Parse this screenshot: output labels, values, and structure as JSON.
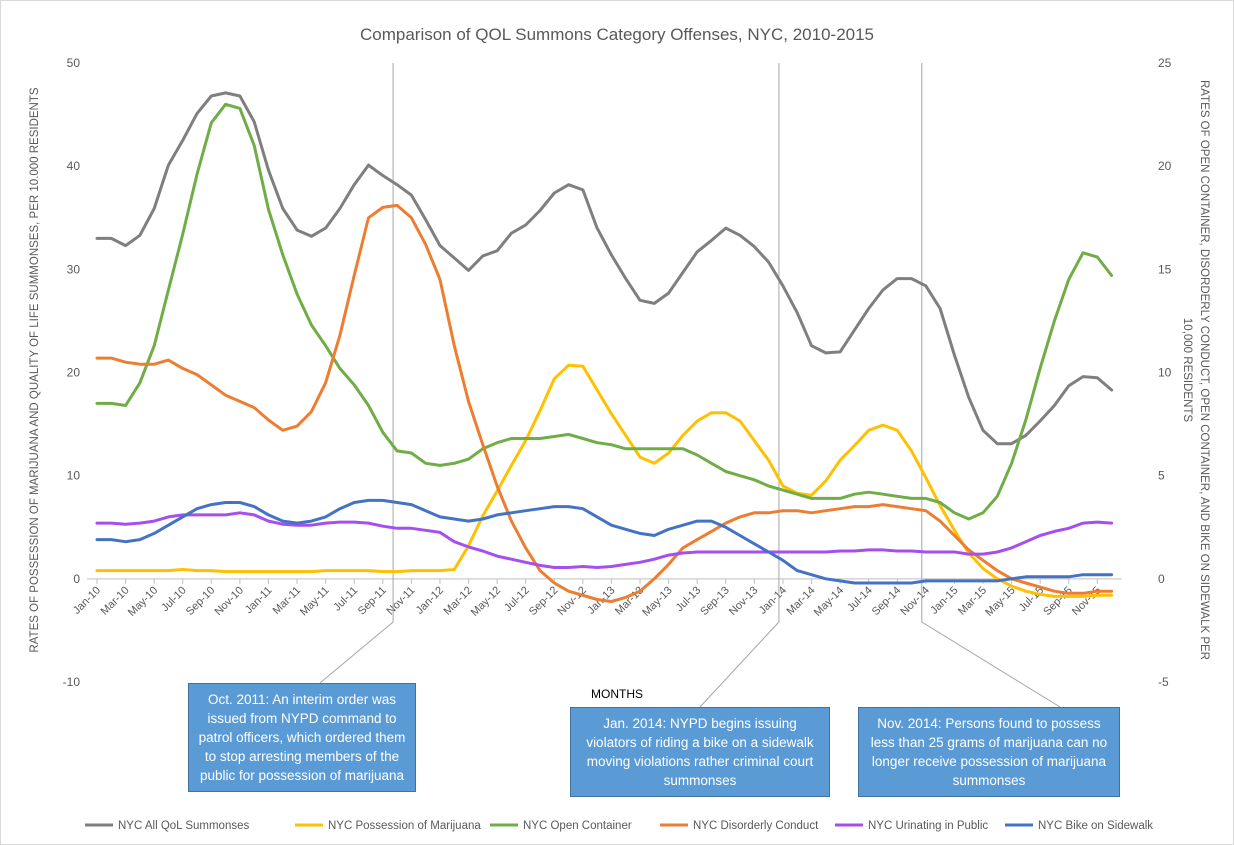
{
  "chart_data": {
    "type": "line",
    "title": "Comparison of QOL Summons Category Offenses, NYC, 2010-2015",
    "x_label": "MONTHS",
    "y_label": "RATES OF POSSESSION OF MARIJUANA AND QUALITY OF LIFE SUMMONSES,  PER 10.000 RESIDENTS",
    "y2_label": [
      "RATES OF OPEN CONTAINER, DISORDERLY CONDUCT, OPEN CONTAINER, AND BIKE ON SIDEWALK PER",
      "10,000 RESIDENTS"
    ],
    "ylim": [
      -10,
      50
    ],
    "yticks": [
      -10,
      0,
      10,
      20,
      30,
      40,
      50
    ],
    "y2lim": [
      -5,
      25
    ],
    "y2ticks": [
      -5,
      0,
      5,
      10,
      15,
      20,
      25
    ],
    "grid": false,
    "legend": "bottom",
    "categories": [
      "Jan-10",
      null,
      "Mar-10",
      null,
      "May-10",
      null,
      "Jul-10",
      null,
      "Sep-10",
      null,
      "Nov-10",
      null,
      "Jan-11",
      null,
      "Mar-11",
      null,
      "May-11",
      null,
      "Jul-11",
      null,
      "Sep-11",
      null,
      "Nov-11",
      null,
      "Jan-12",
      null,
      "Mar-12",
      null,
      "May-12",
      null,
      "Jul-12",
      null,
      "Sep-12",
      null,
      "Nov-12",
      null,
      "Jan-13",
      null,
      "Mar-13",
      null,
      "May-13",
      null,
      "Jul-13",
      null,
      "Sep-13",
      null,
      "Nov-13",
      null,
      "Jan-14",
      null,
      "Mar-14",
      null,
      "May-14",
      null,
      "Jul-14",
      null,
      "Sep-14",
      null,
      "Nov-14",
      null,
      "Jan-15",
      null,
      "Mar-15",
      null,
      "May-15",
      null,
      "Jul-15",
      null,
      "Sep-15",
      null,
      "Nov-15",
      null
    ],
    "series": [
      {
        "name": "NYC All QoL Summonses",
        "color": "#7f7f7f",
        "values": [
          33.0,
          33.0,
          32.3,
          33.3,
          35.9,
          40.1,
          42.5,
          45.1,
          46.8,
          47.1,
          46.8,
          44.3,
          39.6,
          35.9,
          33.8,
          33.2,
          34.0,
          35.9,
          38.2,
          40.1,
          39.1,
          38.2,
          37.2,
          34.8,
          32.3,
          31.1,
          29.9,
          31.3,
          31.8,
          33.5,
          34.3,
          35.7,
          37.4,
          38.2,
          37.7,
          34.0,
          31.4,
          29.1,
          27.0,
          26.7,
          27.7,
          29.7,
          31.7,
          32.8,
          34.0,
          33.3,
          32.2,
          30.7,
          28.4,
          25.8,
          22.6,
          21.9,
          22.0,
          24.1,
          26.2,
          28.0,
          29.1,
          29.1,
          28.4,
          26.2,
          21.7,
          17.6,
          14.4,
          13.1,
          13.1,
          13.9,
          15.3,
          16.8,
          18.7,
          19.6,
          19.5,
          18.3
        ]
      },
      {
        "name": "NYC Possession of Marijuana",
        "color": "#ffc000",
        "values": [
          0.8,
          0.8,
          0.8,
          0.8,
          0.8,
          0.8,
          0.9,
          0.8,
          0.8,
          0.7,
          0.7,
          0.7,
          0.7,
          0.7,
          0.7,
          0.7,
          0.8,
          0.8,
          0.8,
          0.8,
          0.7,
          0.7,
          0.8,
          0.8,
          0.8,
          0.9,
          3.2,
          6.1,
          8.5,
          11.0,
          13.4,
          16.3,
          19.4,
          20.7,
          20.6,
          18.3,
          16.0,
          13.9,
          11.8,
          11.2,
          12.2,
          13.9,
          15.3,
          16.1,
          16.1,
          15.3,
          13.4,
          11.5,
          9.0,
          8.3,
          8.1,
          9.5,
          11.5,
          12.9,
          14.4,
          14.9,
          14.4,
          12.4,
          9.8,
          7.1,
          4.7,
          2.5,
          1.0,
          0,
          -0.7,
          -1.2,
          -1.5,
          -1.7,
          -1.7,
          -1.7,
          -1.6,
          -1.6
        ]
      },
      {
        "name": "NYC Open Container",
        "color": "#70ad47",
        "axis": "y2",
        "values": [
          8.5,
          8.5,
          8.4,
          9.5,
          11.3,
          14.0,
          16.7,
          19.6,
          22.1,
          23.0,
          22.8,
          21.0,
          17.9,
          15.7,
          13.8,
          12.3,
          11.3,
          10.2,
          9.4,
          8.4,
          7.1,
          6.2,
          6.1,
          5.6,
          5.5,
          5.6,
          5.8,
          6.3,
          6.6,
          6.8,
          6.8,
          6.8,
          6.9,
          7.0,
          6.8,
          6.6,
          6.5,
          6.3,
          6.3,
          6.3,
          6.3,
          6.3,
          6.0,
          5.6,
          5.2,
          5.0,
          4.8,
          4.5,
          4.3,
          4.1,
          3.9,
          3.9,
          3.9,
          4.1,
          4.2,
          4.1,
          4.0,
          3.9,
          3.9,
          3.7,
          3.2,
          2.9,
          3.2,
          4.0,
          5.6,
          7.7,
          10.2,
          12.5,
          14.5,
          15.8,
          15.6,
          14.7
        ]
      },
      {
        "name": "NYC Disorderly Conduct",
        "color": "#ed7d31",
        "axis": "y2",
        "values": [
          10.7,
          10.7,
          10.5,
          10.4,
          10.4,
          10.6,
          10.2,
          9.9,
          9.4,
          8.9,
          8.6,
          8.3,
          7.7,
          7.2,
          7.4,
          8.1,
          9.5,
          11.8,
          14.7,
          17.5,
          18.0,
          18.1,
          17.5,
          16.2,
          14.5,
          11.3,
          8.6,
          6.5,
          4.5,
          2.8,
          1.5,
          0.4,
          -0.2,
          -0.6,
          -0.8,
          -1.0,
          -1.1,
          -0.9,
          -0.6,
          0,
          0.7,
          1.5,
          1.9,
          2.3,
          2.7,
          3.0,
          3.2,
          3.2,
          3.3,
          3.3,
          3.2,
          3.3,
          3.4,
          3.5,
          3.5,
          3.6,
          3.5,
          3.4,
          3.3,
          2.8,
          2.1,
          1.4,
          0.9,
          0.4,
          0,
          -0.2,
          -0.4,
          -0.6,
          -0.7,
          -0.7,
          -0.6,
          -0.6
        ]
      },
      {
        "name": "NYC Urinating in Public",
        "color": "#a64ff0",
        "values": [
          5.4,
          5.4,
          5.3,
          5.4,
          5.6,
          6.0,
          6.2,
          6.2,
          6.2,
          6.2,
          6.4,
          6.2,
          5.6,
          5.3,
          5.2,
          5.2,
          5.4,
          5.5,
          5.5,
          5.4,
          5.1,
          4.9,
          4.9,
          4.7,
          4.5,
          3.6,
          3.1,
          2.7,
          2.2,
          1.9,
          1.6,
          1.3,
          1.1,
          1.1,
          1.2,
          1.1,
          1.2,
          1.4,
          1.6,
          1.9,
          2.3,
          2.5,
          2.6,
          2.6,
          2.6,
          2.6,
          2.6,
          2.6,
          2.6,
          2.6,
          2.6,
          2.6,
          2.7,
          2.7,
          2.8,
          2.8,
          2.7,
          2.7,
          2.6,
          2.6,
          2.6,
          2.4,
          2.4,
          2.6,
          3.0,
          3.6,
          4.2,
          4.6,
          4.9,
          5.4,
          5.5,
          5.4
        ]
      },
      {
        "name": "NYC Bike on Sidewalk",
        "color": "#4472c4",
        "axis": "y2",
        "values": [
          1.9,
          1.9,
          1.8,
          1.9,
          2.2,
          2.6,
          3.0,
          3.4,
          3.6,
          3.7,
          3.7,
          3.5,
          3.1,
          2.8,
          2.7,
          2.8,
          3.0,
          3.4,
          3.7,
          3.8,
          3.8,
          3.7,
          3.6,
          3.3,
          3.0,
          2.9,
          2.8,
          2.9,
          3.1,
          3.2,
          3.3,
          3.4,
          3.5,
          3.5,
          3.4,
          3.0,
          2.6,
          2.4,
          2.2,
          2.1,
          2.4,
          2.6,
          2.8,
          2.8,
          2.5,
          2.1,
          1.7,
          1.3,
          0.9,
          0.4,
          0.2,
          0,
          -0.1,
          -0.2,
          -0.2,
          -0.2,
          -0.2,
          -0.2,
          -0.1,
          -0.1,
          -0.1,
          -0.1,
          -0.1,
          -0.1,
          0,
          0.1,
          0.1,
          0.1,
          0.1,
          0.2,
          0.2,
          0.2
        ]
      }
    ],
    "annotations": [
      "Oct. 2011:  An interim order was issued from NYPD command to patrol officers, which ordered them to stop arresting members of the public for possession of marijuana",
      "Jan. 2014:  NYPD begins issuing violators of riding a bike on a sidewalk moving violations rather criminal court summonses",
      "Nov. 2014:  Persons found to possess less than 25 grams of marijuana can no longer receive possession of marijuana summonses"
    ]
  }
}
